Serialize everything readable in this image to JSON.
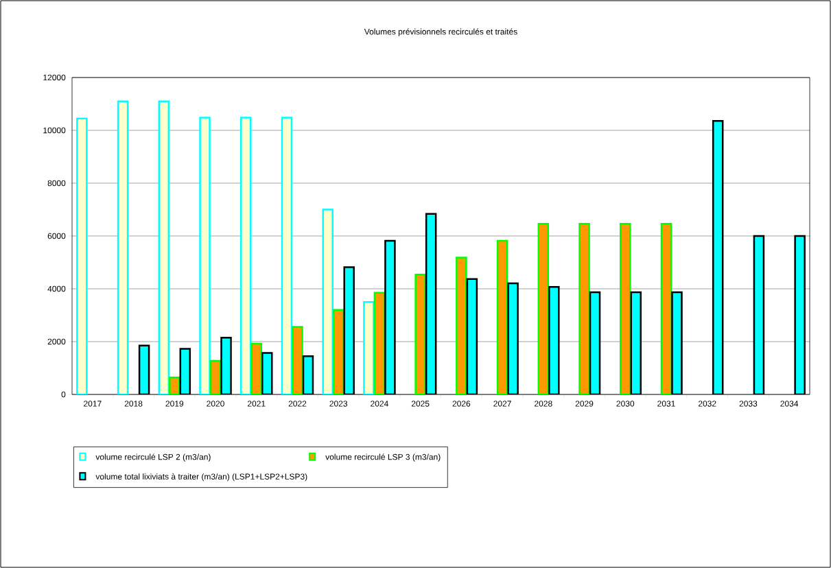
{
  "chart_data": {
    "type": "bar",
    "title": "Volumes prévisionnels recirculés et traités",
    "categories": [
      "2017",
      "2018",
      "2019",
      "2020",
      "2021",
      "2022",
      "2023",
      "2024",
      "2025",
      "2026",
      "2027",
      "2028",
      "2029",
      "2030",
      "2031",
      "2032",
      "2033",
      "2034"
    ],
    "series": [
      {
        "name": "volume recirculé LSP 2 (m3/an)",
        "color": "#ffffcc",
        "values": [
          10450,
          11100,
          11100,
          10480,
          10480,
          10480,
          7000,
          3500,
          null,
          null,
          null,
          null,
          null,
          null,
          null,
          null,
          null,
          null
        ]
      },
      {
        "name": "volume recirculé LSP 3 (m3/an)",
        "color": "#ff9900",
        "values": [
          null,
          null,
          640,
          1270,
          1920,
          2560,
          3200,
          3850,
          4540,
          5180,
          5820,
          6460,
          6460,
          6460,
          6460,
          null,
          null,
          null
        ]
      },
      {
        "name": "volume total lixiviats à traiter (m3/an) (LSP1+LSP2+LSP3)",
        "color": "#00ffff",
        "values": [
          null,
          1850,
          1730,
          2150,
          1570,
          1450,
          4820,
          5820,
          6840,
          4370,
          4210,
          4070,
          3870,
          3870,
          3870,
          10360,
          6000,
          6000
        ]
      }
    ],
    "ylim": [
      0,
      12000
    ],
    "yticks": [
      0,
      2000,
      4000,
      6000,
      8000,
      10000,
      12000
    ],
    "grid": "y",
    "legend": "bottom"
  }
}
